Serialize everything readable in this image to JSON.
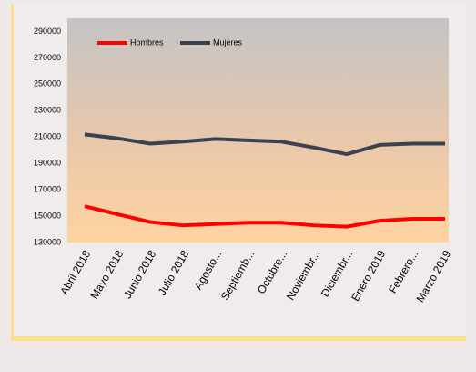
{
  "chart_data": {
    "type": "line",
    "categories": [
      "Abril 2018",
      "Mayo 2018",
      "Junio 2018",
      "Julio 2018",
      "Agosto...",
      "Septiemb...",
      "Octubre...",
      "Noviembr...",
      "Diciembr...",
      "Enero 2019",
      "Febrero...",
      "Marzo 2019"
    ],
    "series": [
      {
        "name": "Hombres",
        "color": "#ff0000",
        "values": [
          157500,
          151500,
          145500,
          143000,
          144000,
          145000,
          145000,
          143000,
          142000,
          146500,
          148000,
          148000
        ]
      },
      {
        "name": "Mujeres",
        "color": "#3a4150",
        "values": [
          212000,
          209000,
          205000,
          206500,
          208500,
          207500,
          206500,
          202000,
          197000,
          204000,
          205000,
          205000
        ]
      }
    ],
    "ylim": [
      130000,
      300000
    ],
    "yticks": [
      130000,
      150000,
      170000,
      190000,
      210000,
      230000,
      250000,
      270000,
      290000
    ],
    "legend": "top-left"
  }
}
